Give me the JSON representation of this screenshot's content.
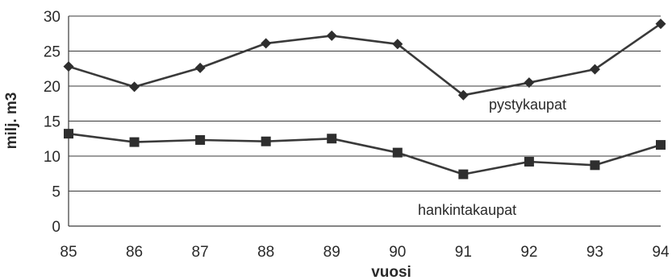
{
  "chart_data": {
    "type": "line",
    "title": "",
    "xlabel": "vuosi",
    "ylabel": "milj. m3",
    "x": [
      "85",
      "86",
      "87",
      "88",
      "89",
      "90",
      "91",
      "92",
      "93",
      "94"
    ],
    "ylim": [
      0,
      30
    ],
    "yticks": [
      "0",
      "5",
      "10",
      "15",
      "20",
      "25",
      "30"
    ],
    "grid": true,
    "legend": "none (series labeled directly on chart)",
    "series": [
      {
        "name": "pystykaupat",
        "marker": "diamond",
        "values": [
          22.8,
          19.9,
          22.6,
          26.1,
          27.2,
          26.0,
          18.7,
          20.5,
          22.4,
          28.9
        ]
      },
      {
        "name": "hankintakaupat",
        "marker": "square",
        "values": [
          13.2,
          12.0,
          12.3,
          12.1,
          12.5,
          10.5,
          7.4,
          9.2,
          8.7,
          11.6
        ]
      }
    ]
  }
}
